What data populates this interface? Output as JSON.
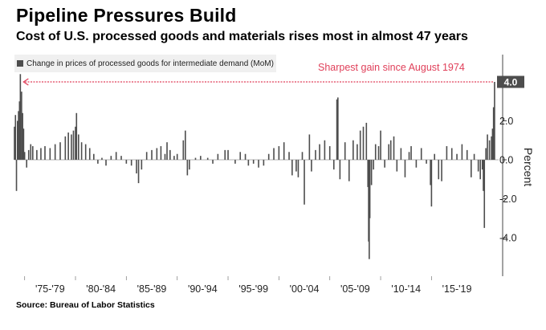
{
  "header": {
    "title": "Pipeline Pressures Build",
    "subtitle": "Cost of U.S. processed goods and materials rises most in almost 47 years"
  },
  "source": "Source: Bureau of Labor Statistics",
  "colors": {
    "bar": "#4d4d4d",
    "annotation": "#e0405a",
    "legend_bg": "#f0f0f0",
    "last_label_bg": "#4d4d4d"
  },
  "chart_data": {
    "type": "bar",
    "title": "Pipeline Pressures Build",
    "subtitle": "Cost of U.S. processed goods and materials rises most in almost 47 years",
    "ylabel": "Percent",
    "xlabel": "",
    "ylim": [
      -6.0,
      5.4
    ],
    "yticks": [
      4.0,
      2.0,
      0.0,
      -2.0,
      -4.0
    ],
    "ytick_labels": [
      "4.0",
      "2.0",
      "0.0",
      "-2.0",
      "-4.0"
    ],
    "grid": false,
    "legend_position": "top-left",
    "xlim": [
      1974.0,
      2021.6
    ],
    "x_tick_labels": [
      {
        "label": "'75-'79",
        "center": 1977.5
      },
      {
        "label": "'80-'84",
        "center": 1982.5
      },
      {
        "label": "'85-'89",
        "center": 1987.5
      },
      {
        "label": "'90-'94",
        "center": 1992.5
      },
      {
        "label": "'95-'99",
        "center": 1997.5
      },
      {
        "label": "'00-'04",
        "center": 2002.5
      },
      {
        "label": "'05-'09",
        "center": 2007.5
      },
      {
        "label": "'10-'14",
        "center": 2012.5
      },
      {
        "label": "'15-'19",
        "center": 2017.5
      }
    ],
    "series": [
      {
        "name": "Change in prices of processed goods for intermediate demand (MoM)",
        "points": [
          [
            1974.0,
            1.7
          ],
          [
            1974.1,
            2.3
          ],
          [
            1974.2,
            -1.6
          ],
          [
            1974.3,
            2.0
          ],
          [
            1974.4,
            2.5
          ],
          [
            1974.5,
            3.0
          ],
          [
            1974.58,
            4.4
          ],
          [
            1974.7,
            3.5
          ],
          [
            1974.8,
            2.4
          ],
          [
            1974.9,
            1.6
          ],
          [
            1975.0,
            0.4
          ],
          [
            1975.2,
            -0.4
          ],
          [
            1975.4,
            0.5
          ],
          [
            1975.6,
            0.8
          ],
          [
            1975.8,
            0.7
          ],
          [
            1976.2,
            0.5
          ],
          [
            1976.6,
            0.6
          ],
          [
            1977.0,
            0.7
          ],
          [
            1977.5,
            0.6
          ],
          [
            1978.0,
            0.8
          ],
          [
            1978.5,
            0.9
          ],
          [
            1979.0,
            1.2
          ],
          [
            1979.3,
            1.4
          ],
          [
            1979.6,
            1.3
          ],
          [
            1979.8,
            1.5
          ],
          [
            1980.0,
            1.7
          ],
          [
            1980.1,
            2.4
          ],
          [
            1980.3,
            1.3
          ],
          [
            1980.6,
            0.9
          ],
          [
            1981.0,
            0.8
          ],
          [
            1981.4,
            0.6
          ],
          [
            1981.8,
            0.3
          ],
          [
            1982.2,
            -0.2
          ],
          [
            1982.6,
            0.1
          ],
          [
            1983.0,
            -0.3
          ],
          [
            1983.5,
            0.2
          ],
          [
            1984.0,
            0.4
          ],
          [
            1984.5,
            0.2
          ],
          [
            1985.0,
            -0.2
          ],
          [
            1985.5,
            -0.3
          ],
          [
            1986.0,
            -0.7
          ],
          [
            1986.2,
            -1.2
          ],
          [
            1986.5,
            -0.5
          ],
          [
            1987.0,
            0.4
          ],
          [
            1987.5,
            0.5
          ],
          [
            1988.0,
            0.6
          ],
          [
            1988.4,
            0.7
          ],
          [
            1988.8,
            0.3
          ],
          [
            1989.0,
            0.9
          ],
          [
            1989.3,
            0.5
          ],
          [
            1989.7,
            0.2
          ],
          [
            1990.0,
            0.3
          ],
          [
            1990.6,
            1.0
          ],
          [
            1990.8,
            1.5
          ],
          [
            1991.0,
            -0.8
          ],
          [
            1991.2,
            -0.5
          ],
          [
            1991.8,
            0.1
          ],
          [
            1992.3,
            0.2
          ],
          [
            1993.0,
            0.1
          ],
          [
            1993.5,
            -0.2
          ],
          [
            1994.0,
            0.3
          ],
          [
            1994.7,
            0.5
          ],
          [
            1995.0,
            0.5
          ],
          [
            1995.7,
            -0.2
          ],
          [
            1996.2,
            0.4
          ],
          [
            1996.7,
            0.3
          ],
          [
            1997.0,
            -0.3
          ],
          [
            1997.5,
            -0.2
          ],
          [
            1998.0,
            -0.4
          ],
          [
            1998.5,
            -0.3
          ],
          [
            1999.0,
            0.3
          ],
          [
            1999.5,
            0.6
          ],
          [
            2000.0,
            0.7
          ],
          [
            2000.5,
            0.9
          ],
          [
            2001.0,
            0.4
          ],
          [
            2001.3,
            -0.8
          ],
          [
            2001.7,
            -0.6
          ],
          [
            2001.9,
            -0.9
          ],
          [
            2002.3,
            0.4
          ],
          [
            2002.5,
            -2.3
          ],
          [
            2003.0,
            1.3
          ],
          [
            2003.2,
            -0.6
          ],
          [
            2003.6,
            0.5
          ],
          [
            2004.0,
            0.8
          ],
          [
            2004.5,
            1.0
          ],
          [
            2005.0,
            0.7
          ],
          [
            2005.4,
            -0.5
          ],
          [
            2005.7,
            3.1
          ],
          [
            2005.8,
            3.2
          ],
          [
            2006.0,
            -1.0
          ],
          [
            2006.5,
            0.9
          ],
          [
            2006.9,
            -1.1
          ],
          [
            2007.3,
            1.0
          ],
          [
            2007.7,
            0.8
          ],
          [
            2008.0,
            1.5
          ],
          [
            2008.3,
            1.7
          ],
          [
            2008.6,
            1.9
          ],
          [
            2008.75,
            -1.4
          ],
          [
            2008.82,
            -4.2
          ],
          [
            2008.88,
            -5.1
          ],
          [
            2008.94,
            -3.0
          ],
          [
            2009.1,
            -1.3
          ],
          [
            2009.3,
            -0.5
          ],
          [
            2009.5,
            0.8
          ],
          [
            2009.8,
            0.7
          ],
          [
            2010.0,
            1.5
          ],
          [
            2010.4,
            -0.4
          ],
          [
            2010.8,
            0.8
          ],
          [
            2011.0,
            1.0
          ],
          [
            2011.3,
            1.2
          ],
          [
            2011.6,
            -0.6
          ],
          [
            2012.0,
            0.6
          ],
          [
            2012.4,
            -0.9
          ],
          [
            2012.8,
            0.4
          ],
          [
            2013.0,
            0.7
          ],
          [
            2013.5,
            -0.4
          ],
          [
            2014.0,
            0.6
          ],
          [
            2014.5,
            -0.2
          ],
          [
            2014.9,
            -1.3
          ],
          [
            2015.0,
            -2.4
          ],
          [
            2015.3,
            0.3
          ],
          [
            2015.7,
            -1.0
          ],
          [
            2016.0,
            -1.1
          ],
          [
            2016.5,
            0.7
          ],
          [
            2017.0,
            0.6
          ],
          [
            2017.5,
            0.3
          ],
          [
            2018.0,
            0.8
          ],
          [
            2018.5,
            0.5
          ],
          [
            2018.9,
            -0.9
          ],
          [
            2019.2,
            0.3
          ],
          [
            2019.6,
            -0.6
          ],
          [
            2019.8,
            -1.0
          ],
          [
            2020.0,
            -0.5
          ],
          [
            2020.1,
            -1.6
          ],
          [
            2020.2,
            -3.5
          ],
          [
            2020.35,
            0.6
          ],
          [
            2020.5,
            1.3
          ],
          [
            2020.7,
            1.0
          ],
          [
            2020.9,
            1.2
          ],
          [
            2021.0,
            1.6
          ],
          [
            2021.1,
            2.7
          ],
          [
            2021.2,
            4.0
          ]
        ]
      }
    ],
    "last_value_label": "4.0",
    "annotation": {
      "text": "Sharpest gain since August 1974",
      "from_value": 4.0,
      "to_x": 1974.58
    }
  }
}
